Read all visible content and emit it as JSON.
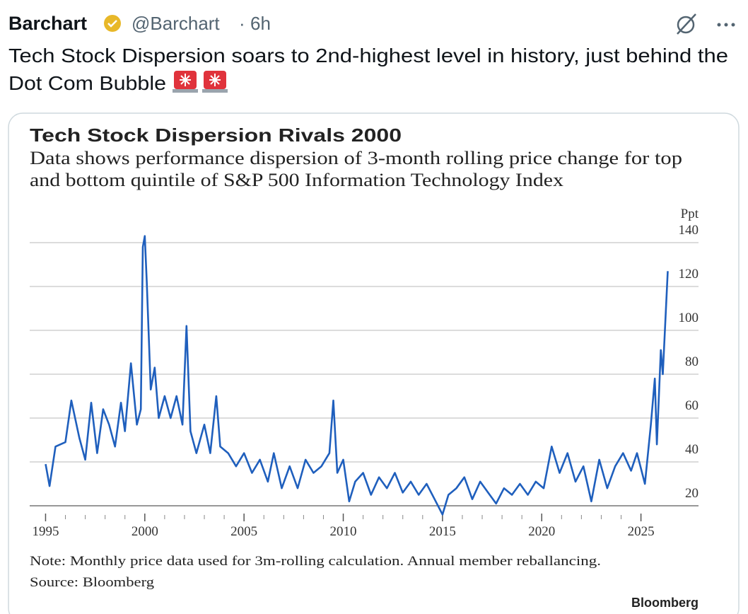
{
  "tweet": {
    "author": "Barchart",
    "handle": "@Barchart",
    "separator": "·",
    "time": "6h",
    "text_lines": [
      "Tech Stock Dispersion soars to 2nd-highest level in history, just behind the",
      "Dot Com Bubble"
    ]
  },
  "chart_data": {
    "type": "line",
    "title": "Tech Stock Dispersion Rivals 2000",
    "subtitle_lines": [
      "Data shows performance dispersion of 3-month rolling price change for top",
      "and bottom quintile of S&P 500 Information Technology Index"
    ],
    "y_unit_label": "Ppt",
    "note": "Note: Monthly price data used for 3m-rolling calculation. Annual member reballancing.",
    "source": "Source: Bloomberg",
    "brand": "Bloomberg",
    "x": [
      1995.0,
      1995.2,
      1995.5,
      1996.0,
      1996.3,
      1996.7,
      1997.0,
      1997.3,
      1997.6,
      1997.9,
      1998.2,
      1998.5,
      1998.8,
      1999.0,
      1999.3,
      1999.6,
      1999.8,
      1999.9,
      2000.0,
      2000.1,
      2000.3,
      2000.5,
      2000.7,
      2001.0,
      2001.3,
      2001.6,
      2001.9,
      2002.1,
      2002.3,
      2002.6,
      2003.0,
      2003.3,
      2003.6,
      2003.8,
      2004.2,
      2004.6,
      2005.0,
      2005.4,
      2005.8,
      2006.2,
      2006.5,
      2006.9,
      2007.3,
      2007.7,
      2008.1,
      2008.5,
      2008.9,
      2009.3,
      2009.5,
      2009.7,
      2010.0,
      2010.3,
      2010.6,
      2011.0,
      2011.4,
      2011.8,
      2012.2,
      2012.6,
      2013.0,
      2013.4,
      2013.8,
      2014.2,
      2014.6,
      2015.0,
      2015.3,
      2015.7,
      2016.1,
      2016.5,
      2016.9,
      2017.3,
      2017.7,
      2018.1,
      2018.5,
      2018.9,
      2019.3,
      2019.7,
      2020.1,
      2020.5,
      2020.9,
      2021.3,
      2021.7,
      2022.1,
      2022.5,
      2022.9,
      2023.3,
      2023.7,
      2024.1,
      2024.5,
      2024.8,
      2025.2,
      2025.5,
      2025.7,
      2025.8,
      2026.0,
      2026.1,
      2026.35
    ],
    "series": [
      {
        "color": "#1f5fbd",
        "values": [
          39,
          29,
          47,
          49,
          68,
          51,
          41,
          67,
          44,
          64,
          57,
          47,
          67,
          54,
          85,
          57,
          64,
          138,
          143,
          122,
          73,
          83,
          60,
          70,
          60,
          70,
          57,
          102,
          54,
          44,
          57,
          44,
          70,
          47,
          44,
          38,
          44,
          35,
          41,
          31,
          44,
          28,
          38,
          28,
          41,
          35,
          38,
          44,
          68,
          35,
          41,
          22,
          31,
          35,
          25,
          33,
          28,
          35,
          26,
          31,
          25,
          30,
          23,
          16,
          25,
          28,
          33,
          23,
          31,
          26,
          21,
          28,
          25,
          30,
          25,
          31,
          28,
          47,
          35,
          44,
          31,
          38,
          22,
          41,
          28,
          38,
          44,
          36,
          44,
          30,
          57,
          78,
          48,
          91,
          80,
          127
        ]
      }
    ],
    "xlim": [
      1994.2,
      2027.9
    ],
    "xticks": [
      1995,
      2000,
      2005,
      2010,
      2015,
      2020,
      2025
    ],
    "ylim": [
      13,
      145
    ],
    "yticks": [
      20,
      40,
      60,
      80,
      100,
      120,
      140
    ],
    "grid": true
  }
}
